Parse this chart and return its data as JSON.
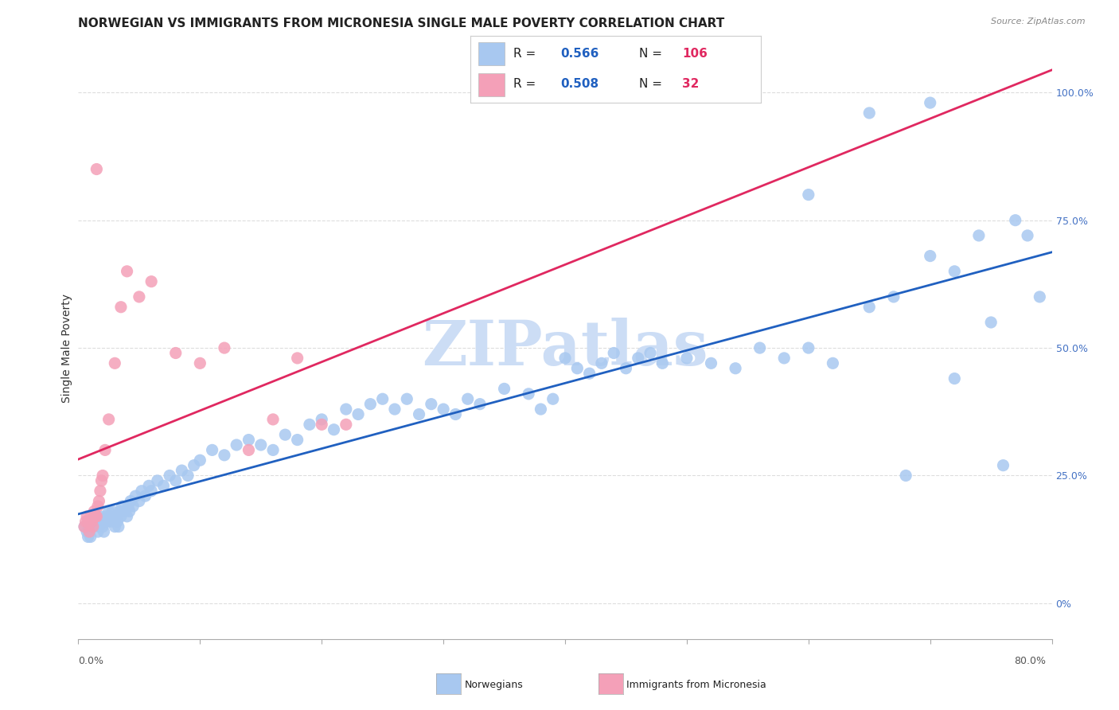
{
  "title": "NORWEGIAN VS IMMIGRANTS FROM MICRONESIA SINGLE MALE POVERTY CORRELATION CHART",
  "source": "Source: ZipAtlas.com",
  "ylabel": "Single Male Poverty",
  "right_ytick_vals": [
    0.0,
    0.25,
    0.5,
    0.75,
    1.0
  ],
  "right_ytick_labels": [
    "0%",
    "25.0%",
    "50.0%",
    "75.0%",
    "100.0%"
  ],
  "xmin": 0.0,
  "xmax": 0.8,
  "ymin": -0.07,
  "ymax": 1.07,
  "blue_R": 0.566,
  "blue_N": 106,
  "pink_R": 0.508,
  "pink_N": 32,
  "blue_color": "#a8c8f0",
  "pink_color": "#f4a0b8",
  "blue_line_color": "#2060c0",
  "pink_line_color": "#e02860",
  "watermark": "ZIPatlas",
  "watermark_color": "#ccddf5",
  "blue_scatter_x": [
    0.005,
    0.007,
    0.008,
    0.009,
    0.01,
    0.012,
    0.013,
    0.015,
    0.016,
    0.017,
    0.018,
    0.019,
    0.02,
    0.021,
    0.022,
    0.023,
    0.024,
    0.025,
    0.026,
    0.027,
    0.028,
    0.03,
    0.031,
    0.032,
    0.033,
    0.034,
    0.035,
    0.036,
    0.038,
    0.04,
    0.041,
    0.042,
    0.043,
    0.045,
    0.047,
    0.05,
    0.052,
    0.055,
    0.058,
    0.06,
    0.065,
    0.07,
    0.075,
    0.08,
    0.085,
    0.09,
    0.095,
    0.1,
    0.11,
    0.12,
    0.13,
    0.14,
    0.15,
    0.16,
    0.17,
    0.18,
    0.19,
    0.2,
    0.21,
    0.22,
    0.23,
    0.24,
    0.25,
    0.26,
    0.27,
    0.28,
    0.29,
    0.3,
    0.31,
    0.32,
    0.33,
    0.35,
    0.37,
    0.38,
    0.39,
    0.4,
    0.41,
    0.42,
    0.43,
    0.44,
    0.45,
    0.46,
    0.47,
    0.48,
    0.5,
    0.52,
    0.54,
    0.56,
    0.58,
    0.6,
    0.62,
    0.65,
    0.67,
    0.68,
    0.7,
    0.72,
    0.74,
    0.76,
    0.6,
    0.65,
    0.7,
    0.72,
    0.75,
    0.77,
    0.78,
    0.79
  ],
  "blue_scatter_y": [
    0.15,
    0.14,
    0.13,
    0.15,
    0.13,
    0.15,
    0.17,
    0.16,
    0.14,
    0.15,
    0.17,
    0.16,
    0.15,
    0.14,
    0.16,
    0.17,
    0.16,
    0.18,
    0.17,
    0.16,
    0.18,
    0.15,
    0.17,
    0.16,
    0.15,
    0.18,
    0.17,
    0.19,
    0.18,
    0.17,
    0.19,
    0.18,
    0.2,
    0.19,
    0.21,
    0.2,
    0.22,
    0.21,
    0.23,
    0.22,
    0.24,
    0.23,
    0.25,
    0.24,
    0.26,
    0.25,
    0.27,
    0.28,
    0.3,
    0.29,
    0.31,
    0.32,
    0.31,
    0.3,
    0.33,
    0.32,
    0.35,
    0.36,
    0.34,
    0.38,
    0.37,
    0.39,
    0.4,
    0.38,
    0.4,
    0.37,
    0.39,
    0.38,
    0.37,
    0.4,
    0.39,
    0.42,
    0.41,
    0.38,
    0.4,
    0.48,
    0.46,
    0.45,
    0.47,
    0.49,
    0.46,
    0.48,
    0.49,
    0.47,
    0.48,
    0.47,
    0.46,
    0.5,
    0.48,
    0.5,
    0.47,
    0.58,
    0.6,
    0.25,
    0.68,
    0.65,
    0.72,
    0.27,
    0.8,
    0.96,
    0.98,
    0.44,
    0.55,
    0.75,
    0.72,
    0.6
  ],
  "pink_scatter_x": [
    0.005,
    0.006,
    0.007,
    0.008,
    0.009,
    0.01,
    0.011,
    0.012,
    0.013,
    0.014,
    0.015,
    0.016,
    0.017,
    0.018,
    0.019,
    0.02,
    0.022,
    0.025,
    0.03,
    0.035,
    0.04,
    0.05,
    0.06,
    0.08,
    0.1,
    0.12,
    0.14,
    0.16,
    0.18,
    0.2,
    0.22,
    0.015
  ],
  "pink_scatter_y": [
    0.15,
    0.16,
    0.17,
    0.16,
    0.14,
    0.17,
    0.16,
    0.15,
    0.18,
    0.17,
    0.17,
    0.19,
    0.2,
    0.22,
    0.24,
    0.25,
    0.3,
    0.36,
    0.47,
    0.58,
    0.65,
    0.6,
    0.63,
    0.49,
    0.47,
    0.5,
    0.3,
    0.36,
    0.48,
    0.35,
    0.35,
    0.85
  ]
}
